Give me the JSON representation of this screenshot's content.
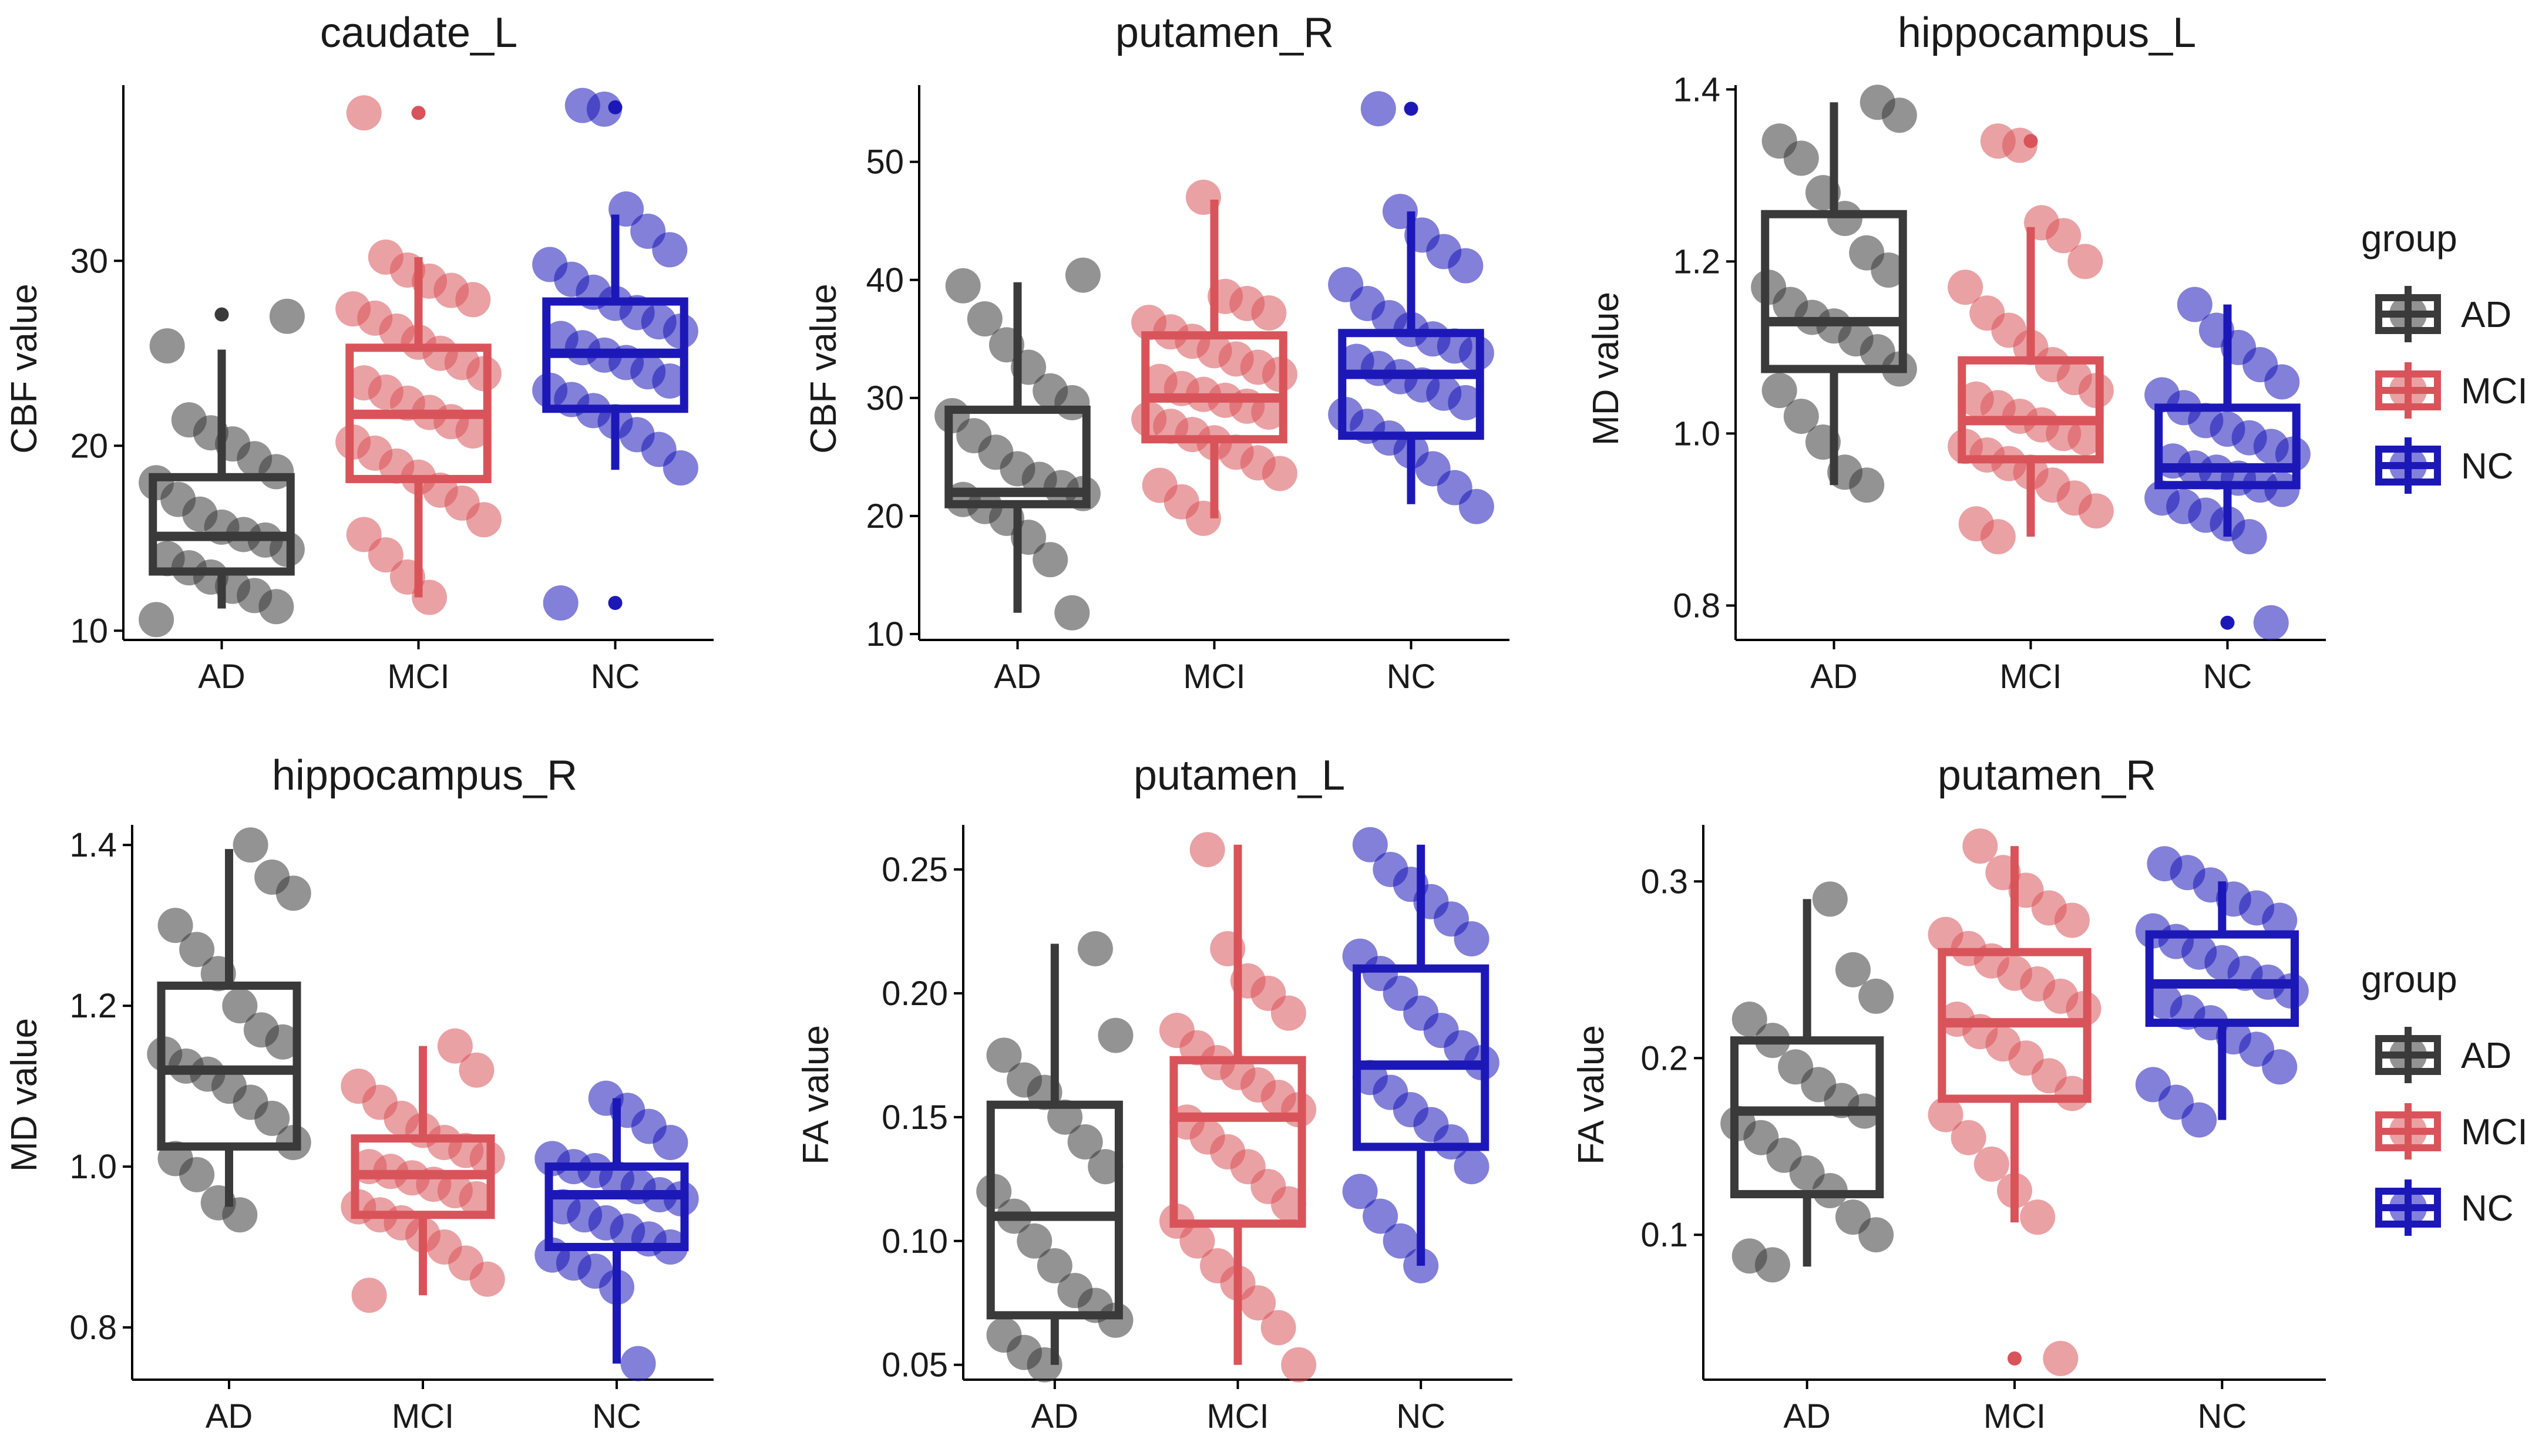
{
  "colors": {
    "AD": "#3a3a3a",
    "MCI": "#d9545a",
    "NC": "#1c18b8"
  },
  "chart_data": [
    {
      "type": "box",
      "title": "caudate_L",
      "ylabel": "CBF value",
      "ylim": [
        9.5,
        39.5
      ],
      "yticks": [
        10,
        20,
        30
      ],
      "categories": [
        "AD",
        "MCI",
        "NC"
      ],
      "boxes": [
        {
          "group": "AD",
          "low": 11.2,
          "q1": 13.2,
          "median": 15.1,
          "q3": 18.3,
          "high": 25.2,
          "outliers": [
            27.1
          ]
        },
        {
          "group": "MCI",
          "low": 11.8,
          "q1": 18.2,
          "median": 21.7,
          "q3": 25.3,
          "high": 30.2,
          "outliers": [
            38.0
          ]
        },
        {
          "group": "NC",
          "low": 18.7,
          "q1": 22.0,
          "median": 25.0,
          "q3": 27.8,
          "high": 32.5,
          "outliers": [
            11.5,
            38.3
          ]
        }
      ],
      "points": {
        "AD": [
          10.6,
          11.3,
          11.9,
          12.4,
          12.9,
          13.4,
          13.9,
          14.4,
          14.9,
          15.2,
          15.6,
          16.3,
          17.1,
          18.0,
          18.6,
          19.3,
          20.1,
          20.7,
          21.4,
          25.4,
          27.0
        ],
        "MCI": [
          11.8,
          12.9,
          14.1,
          15.2,
          16.0,
          16.9,
          17.6,
          18.3,
          18.9,
          19.6,
          20.2,
          20.8,
          21.3,
          21.8,
          22.3,
          22.9,
          23.4,
          23.9,
          24.5,
          25.0,
          25.6,
          26.2,
          26.9,
          27.4,
          27.9,
          28.4,
          28.9,
          29.5,
          30.2,
          38.0
        ],
        "NC": [
          11.5,
          18.8,
          19.8,
          20.6,
          21.3,
          21.9,
          22.5,
          23.0,
          23.5,
          24.0,
          24.5,
          24.9,
          25.3,
          25.8,
          26.2,
          26.7,
          27.2,
          27.7,
          28.3,
          29.0,
          29.8,
          30.6,
          31.6,
          32.8,
          38.2,
          38.4
        ]
      }
    },
    {
      "type": "box",
      "title": "putamen_R",
      "ylabel": "CBF value",
      "ylim": [
        9.5,
        56.5
      ],
      "yticks": [
        10,
        20,
        30,
        40,
        50
      ],
      "categories": [
        "AD",
        "MCI",
        "NC"
      ],
      "boxes": [
        {
          "group": "AD",
          "low": 11.8,
          "q1": 21.0,
          "median": 22.0,
          "q3": 29.0,
          "high": 39.8,
          "outliers": []
        },
        {
          "group": "MCI",
          "low": 19.8,
          "q1": 26.5,
          "median": 30.0,
          "q3": 35.3,
          "high": 46.8,
          "outliers": []
        },
        {
          "group": "NC",
          "low": 21.0,
          "q1": 26.8,
          "median": 32.0,
          "q3": 35.5,
          "high": 45.8,
          "outliers": [
            54.5
          ]
        }
      ],
      "points": {
        "AD": [
          11.8,
          16.3,
          18.2,
          19.8,
          20.8,
          21.4,
          21.9,
          22.4,
          23.1,
          24.0,
          25.4,
          26.8,
          28.5,
          29.6,
          30.6,
          32.6,
          34.5,
          36.7,
          39.5,
          40.4
        ],
        "MCI": [
          19.8,
          21.2,
          22.6,
          23.6,
          24.5,
          25.4,
          26.2,
          26.9,
          27.6,
          28.2,
          28.8,
          29.3,
          29.8,
          30.3,
          30.8,
          31.4,
          32.0,
          32.6,
          33.3,
          34.0,
          34.8,
          35.6,
          36.4,
          37.2,
          38.0,
          38.6,
          47.0
        ],
        "NC": [
          20.8,
          22.4,
          24.0,
          25.5,
          26.6,
          27.6,
          28.6,
          29.6,
          30.4,
          31.1,
          31.8,
          32.5,
          33.1,
          33.8,
          34.4,
          35.0,
          35.8,
          36.8,
          38.0,
          39.6,
          41.2,
          42.4,
          43.8,
          45.8,
          54.5
        ]
      }
    },
    {
      "type": "box",
      "title": "hippocampus_L",
      "ylabel": "MD value",
      "ylim": [
        0.76,
        1.405
      ],
      "yticks": [
        "0.8",
        "1.0",
        "1.2",
        "1.4"
      ],
      "categories": [
        "AD",
        "MCI",
        "NC"
      ],
      "boxes": [
        {
          "group": "AD",
          "low": 0.94,
          "q1": 1.075,
          "median": 1.13,
          "q3": 1.255,
          "high": 1.385,
          "outliers": []
        },
        {
          "group": "MCI",
          "low": 0.88,
          "q1": 0.97,
          "median": 1.015,
          "q3": 1.085,
          "high": 1.24,
          "outliers": [
            1.34
          ]
        },
        {
          "group": "NC",
          "low": 0.88,
          "q1": 0.94,
          "median": 0.96,
          "q3": 1.03,
          "high": 1.15,
          "outliers": [
            0.78
          ]
        }
      ],
      "points": {
        "AD": [
          0.94,
          0.955,
          0.99,
          1.02,
          1.05,
          1.075,
          1.095,
          1.11,
          1.125,
          1.135,
          1.15,
          1.17,
          1.19,
          1.21,
          1.25,
          1.28,
          1.32,
          1.34,
          1.37,
          1.385
        ],
        "MCI": [
          0.88,
          0.895,
          0.91,
          0.925,
          0.94,
          0.955,
          0.965,
          0.975,
          0.985,
          0.995,
          1.0,
          1.01,
          1.02,
          1.03,
          1.04,
          1.05,
          1.065,
          1.08,
          1.1,
          1.12,
          1.14,
          1.17,
          1.2,
          1.23,
          1.245,
          1.335,
          1.34
        ],
        "NC": [
          0.78,
          0.88,
          0.895,
          0.905,
          0.915,
          0.925,
          0.935,
          0.94,
          0.948,
          0.955,
          0.96,
          0.968,
          0.976,
          0.985,
          0.995,
          1.005,
          1.015,
          1.03,
          1.045,
          1.06,
          1.08,
          1.1,
          1.12,
          1.15
        ]
      }
    },
    {
      "type": "box",
      "title": "hippocampus_R",
      "ylabel": "MD value",
      "ylim": [
        0.735,
        1.425
      ],
      "yticks": [
        "0.8",
        "1.0",
        "1.2",
        "1.4"
      ],
      "categories": [
        "AD",
        "MCI",
        "NC"
      ],
      "boxes": [
        {
          "group": "AD",
          "low": 0.95,
          "q1": 1.025,
          "median": 1.12,
          "q3": 1.225,
          "high": 1.395,
          "outliers": []
        },
        {
          "group": "MCI",
          "low": 0.84,
          "q1": 0.94,
          "median": 0.99,
          "q3": 1.035,
          "high": 1.15,
          "outliers": []
        },
        {
          "group": "NC",
          "low": 0.755,
          "q1": 0.9,
          "median": 0.965,
          "q3": 1.0,
          "high": 1.085,
          "outliers": []
        }
      ],
      "points": {
        "AD": [
          0.94,
          0.955,
          0.99,
          1.01,
          1.03,
          1.06,
          1.08,
          1.1,
          1.115,
          1.125,
          1.14,
          1.155,
          1.17,
          1.2,
          1.24,
          1.27,
          1.3,
          1.34,
          1.36,
          1.4
        ],
        "MCI": [
          0.84,
          0.86,
          0.88,
          0.9,
          0.915,
          0.93,
          0.94,
          0.95,
          0.96,
          0.97,
          0.978,
          0.986,
          0.994,
          1.0,
          1.01,
          1.02,
          1.03,
          1.045,
          1.06,
          1.08,
          1.1,
          1.12,
          1.15
        ],
        "NC": [
          0.755,
          0.85,
          0.87,
          0.88,
          0.89,
          0.9,
          0.91,
          0.92,
          0.93,
          0.94,
          0.95,
          0.96,
          0.965,
          0.975,
          0.985,
          0.995,
          1.0,
          1.01,
          1.03,
          1.05,
          1.07,
          1.085
        ]
      }
    },
    {
      "type": "box",
      "title": "putamen_L",
      "ylabel": "FA value",
      "ylim": [
        0.044,
        0.268
      ],
      "yticks": [
        "0.05",
        "0.10",
        "0.15",
        "0.20",
        "0.25"
      ],
      "categories": [
        "AD",
        "MCI",
        "NC"
      ],
      "boxes": [
        {
          "group": "AD",
          "low": 0.05,
          "q1": 0.07,
          "median": 0.11,
          "q3": 0.155,
          "high": 0.22,
          "outliers": []
        },
        {
          "group": "MCI",
          "low": 0.05,
          "q1": 0.107,
          "median": 0.15,
          "q3": 0.173,
          "high": 0.26,
          "outliers": []
        },
        {
          "group": "NC",
          "low": 0.09,
          "q1": 0.138,
          "median": 0.171,
          "q3": 0.21,
          "high": 0.26,
          "outliers": []
        }
      ],
      "points": {
        "AD": [
          0.05,
          0.055,
          0.062,
          0.068,
          0.074,
          0.08,
          0.09,
          0.1,
          0.11,
          0.12,
          0.13,
          0.14,
          0.15,
          0.16,
          0.165,
          0.175,
          0.183,
          0.218
        ],
        "MCI": [
          0.05,
          0.065,
          0.075,
          0.083,
          0.09,
          0.1,
          0.108,
          0.115,
          0.122,
          0.13,
          0.136,
          0.142,
          0.148,
          0.153,
          0.158,
          0.163,
          0.168,
          0.172,
          0.178,
          0.185,
          0.192,
          0.2,
          0.205,
          0.218,
          0.258
        ],
        "NC": [
          0.09,
          0.1,
          0.11,
          0.12,
          0.13,
          0.14,
          0.147,
          0.153,
          0.16,
          0.166,
          0.172,
          0.178,
          0.185,
          0.192,
          0.2,
          0.208,
          0.215,
          0.222,
          0.23,
          0.237,
          0.244,
          0.25,
          0.26
        ]
      }
    },
    {
      "type": "box",
      "title": "putamen_R",
      "ylabel": "FA value",
      "ylim": [
        0.018,
        0.332
      ],
      "yticks": [
        "0.1",
        "0.2",
        "0.3"
      ],
      "categories": [
        "AD",
        "MCI",
        "NC"
      ],
      "boxes": [
        {
          "group": "AD",
          "low": 0.082,
          "q1": 0.123,
          "median": 0.17,
          "q3": 0.21,
          "high": 0.29,
          "outliers": []
        },
        {
          "group": "MCI",
          "low": 0.107,
          "q1": 0.177,
          "median": 0.22,
          "q3": 0.26,
          "high": 0.32,
          "outliers": [
            0.03
          ]
        },
        {
          "group": "NC",
          "low": 0.165,
          "q1": 0.22,
          "median": 0.242,
          "q3": 0.27,
          "high": 0.3,
          "outliers": []
        }
      ],
      "points": {
        "AD": [
          0.083,
          0.088,
          0.1,
          0.11,
          0.125,
          0.135,
          0.145,
          0.155,
          0.163,
          0.17,
          0.176,
          0.185,
          0.195,
          0.21,
          0.222,
          0.235,
          0.25,
          0.29
        ],
        "MCI": [
          0.03,
          0.11,
          0.125,
          0.14,
          0.155,
          0.168,
          0.18,
          0.19,
          0.2,
          0.208,
          0.215,
          0.222,
          0.228,
          0.235,
          0.242,
          0.248,
          0.255,
          0.262,
          0.27,
          0.278,
          0.285,
          0.295,
          0.305,
          0.32
        ],
        "NC": [
          0.165,
          0.175,
          0.185,
          0.195,
          0.205,
          0.212,
          0.22,
          0.226,
          0.232,
          0.238,
          0.243,
          0.248,
          0.254,
          0.26,
          0.266,
          0.272,
          0.278,
          0.285,
          0.29,
          0.298,
          0.305,
          0.31
        ]
      }
    }
  ],
  "legends": [
    {
      "title": "group",
      "items": [
        "AD",
        "MCI",
        "NC"
      ]
    },
    {
      "title": "group",
      "items": [
        "AD",
        "MCI",
        "NC"
      ]
    }
  ]
}
